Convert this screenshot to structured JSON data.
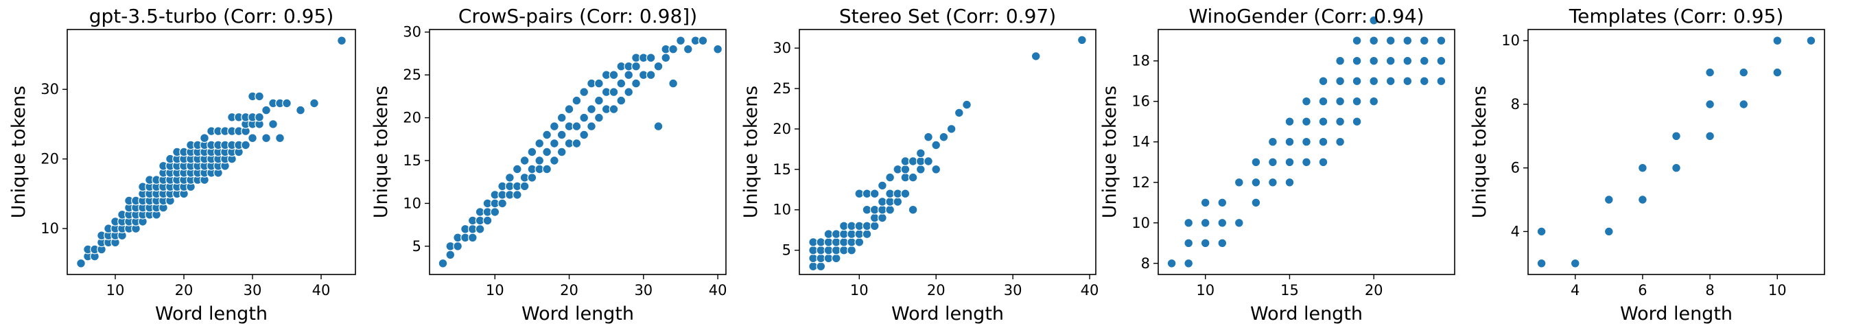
{
  "chart_data": [
    {
      "type": "scatter",
      "title": "gpt-3.5-turbo (Corr: 0.95)",
      "xlabel": "Word length",
      "ylabel": "Unique tokens",
      "xlim": [
        3.0,
        45.0
      ],
      "ylim": [
        3.4,
        38.6
      ],
      "xticks": [
        10,
        20,
        30,
        40
      ],
      "yticks": [
        10,
        20,
        30
      ],
      "color": "#1f77b4",
      "grid": false,
      "x": [
        5,
        6,
        6,
        7,
        7,
        8,
        8,
        8,
        9,
        9,
        9,
        10,
        10,
        10,
        10,
        11,
        11,
        11,
        11,
        12,
        12,
        12,
        12,
        12,
        13,
        13,
        13,
        13,
        13,
        14,
        14,
        14,
        14,
        14,
        14,
        15,
        15,
        15,
        15,
        15,
        15,
        16,
        16,
        16,
        16,
        16,
        16,
        17,
        17,
        17,
        17,
        17,
        17,
        17,
        18,
        18,
        18,
        18,
        18,
        18,
        18,
        19,
        19,
        19,
        19,
        19,
        19,
        19,
        20,
        20,
        20,
        20,
        20,
        20,
        20,
        21,
        21,
        21,
        21,
        21,
        21,
        21,
        22,
        22,
        22,
        22,
        22,
        22,
        23,
        23,
        23,
        23,
        23,
        23,
        23,
        24,
        24,
        24,
        24,
        24,
        24,
        25,
        25,
        25,
        25,
        25,
        25,
        26,
        26,
        26,
        26,
        26,
        27,
        27,
        27,
        27,
        27,
        28,
        28,
        28,
        28,
        29,
        29,
        29,
        29,
        30,
        30,
        30,
        30,
        31,
        31,
        31,
        32,
        32,
        33,
        33,
        34,
        34,
        35,
        37,
        39,
        43
      ],
      "y": [
        5,
        6,
        7,
        6,
        7,
        7,
        8,
        9,
        8,
        9,
        10,
        8,
        9,
        10,
        11,
        9,
        10,
        11,
        12,
        10,
        11,
        12,
        13,
        14,
        10,
        11,
        12,
        13,
        14,
        11,
        12,
        13,
        14,
        15,
        16,
        12,
        13,
        14,
        15,
        16,
        17,
        12,
        13,
        14,
        15,
        16,
        17,
        13,
        14,
        15,
        16,
        17,
        18,
        19,
        14,
        15,
        16,
        17,
        18,
        19,
        20,
        15,
        16,
        17,
        18,
        19,
        20,
        21,
        15,
        16,
        17,
        18,
        19,
        20,
        21,
        16,
        17,
        18,
        19,
        20,
        21,
        22,
        17,
        18,
        19,
        20,
        21,
        22,
        17,
        18,
        19,
        20,
        21,
        22,
        23,
        18,
        19,
        20,
        21,
        22,
        24,
        18,
        19,
        20,
        21,
        22,
        24,
        19,
        20,
        21,
        22,
        24,
        20,
        21,
        22,
        24,
        26,
        21,
        22,
        24,
        26,
        22,
        24,
        25,
        26,
        23,
        25,
        26,
        29,
        25,
        26,
        29,
        23,
        27,
        25,
        28,
        23,
        28,
        28,
        27,
        28,
        37
      ]
    },
    {
      "type": "scatter",
      "title": "CrowS-pairs (Corr: 0.98])",
      "xlabel": "Word length",
      "ylabel": "",
      "xlim": [
        1.2,
        41.1
      ],
      "ylim": [
        1.7,
        30.3
      ],
      "xticks": [
        10,
        20,
        30,
        40
      ],
      "yticks": [
        5,
        10,
        15,
        20,
        25,
        30
      ],
      "color": "#1f77b4",
      "grid": false,
      "x": [
        3,
        4,
        4,
        5,
        5,
        6,
        6,
        7,
        7,
        7,
        8,
        8,
        8,
        9,
        9,
        9,
        10,
        10,
        10,
        11,
        11,
        11,
        12,
        12,
        12,
        13,
        13,
        13,
        14,
        14,
        14,
        15,
        15,
        15,
        16,
        16,
        16,
        17,
        17,
        17,
        18,
        18,
        18,
        19,
        19,
        19,
        20,
        20,
        20,
        21,
        21,
        21,
        22,
        22,
        22,
        23,
        23,
        23,
        24,
        24,
        24,
        25,
        25,
        25,
        26,
        26,
        26,
        27,
        27,
        27,
        28,
        28,
        28,
        29,
        29,
        29,
        30,
        30,
        31,
        31,
        32,
        32,
        33,
        33,
        34,
        34,
        35,
        36,
        37,
        38,
        40
      ],
      "y": [
        3,
        4,
        5,
        5,
        6,
        6,
        7,
        6,
        7,
        8,
        7,
        8,
        9,
        8,
        9,
        10,
        9,
        10,
        11,
        10,
        11,
        12,
        11,
        12,
        13,
        11,
        12,
        14,
        12,
        13,
        15,
        13,
        14,
        16,
        14,
        15,
        17,
        14,
        16,
        18,
        15,
        17,
        19,
        16,
        18,
        20,
        17,
        19,
        21,
        17,
        19,
        22,
        18,
        20,
        23,
        19,
        21,
        24,
        20,
        22,
        24,
        21,
        23,
        25,
        21,
        23,
        25,
        22,
        24,
        26,
        23,
        25,
        26,
        24,
        26,
        27,
        25,
        27,
        25,
        27,
        19,
        26,
        27,
        28,
        24,
        28,
        29,
        28,
        29,
        29,
        28
      ]
    },
    {
      "type": "scatter",
      "title": "Stereo Set (Corr: 0.97)",
      "xlabel": "Word length",
      "ylabel": "",
      "xlim": [
        2.2,
        40.8
      ],
      "ylim": [
        2.0,
        32.3
      ],
      "xticks": [
        10,
        20,
        30,
        40
      ],
      "yticks": [
        5,
        10,
        15,
        20,
        25,
        30
      ],
      "color": "#1f77b4",
      "grid": false,
      "x": [
        4,
        4,
        4,
        4,
        5,
        5,
        5,
        5,
        6,
        6,
        6,
        6,
        7,
        7,
        7,
        7,
        8,
        8,
        8,
        8,
        9,
        9,
        9,
        9,
        10,
        10,
        10,
        10,
        11,
        11,
        11,
        11,
        12,
        12,
        12,
        12,
        13,
        13,
        13,
        13,
        14,
        14,
        14,
        14,
        15,
        15,
        15,
        16,
        16,
        16,
        16,
        17,
        17,
        17,
        18,
        18,
        18,
        19,
        19,
        20,
        20,
        21,
        22,
        23,
        24,
        33,
        39
      ],
      "y": [
        3,
        4,
        5,
        6,
        3,
        4,
        5,
        6,
        4,
        5,
        6,
        7,
        4,
        5,
        6,
        7,
        5,
        6,
        7,
        8,
        5,
        6,
        7,
        8,
        6,
        7,
        8,
        12,
        7,
        8,
        10,
        12,
        8,
        9,
        10,
        12,
        9,
        10,
        11,
        13,
        10,
        11,
        12,
        14,
        11,
        12,
        15,
        12,
        14,
        15,
        16,
        10,
        14,
        16,
        15,
        16,
        17,
        16,
        19,
        15,
        18,
        19,
        20,
        22,
        23,
        29,
        31
      ]
    },
    {
      "type": "scatter",
      "title": "WinoGender (Corr: 0.94)",
      "xlabel": "Word length",
      "ylabel": "",
      "xlim": [
        7.2,
        24.8
      ],
      "ylim": [
        7.45,
        19.55
      ],
      "xticks": [
        10,
        15,
        20
      ],
      "yticks": [
        8,
        10,
        12,
        14,
        16,
        18
      ],
      "color": "#1f77b4",
      "grid": false,
      "x": [
        8,
        9,
        9,
        9,
        9,
        10,
        10,
        10,
        11,
        11,
        11,
        12,
        12,
        13,
        13,
        13,
        14,
        14,
        14,
        15,
        15,
        15,
        15,
        16,
        16,
        16,
        16,
        17,
        17,
        17,
        17,
        17,
        18,
        18,
        18,
        18,
        18,
        19,
        19,
        19,
        19,
        19,
        20,
        20,
        20,
        20,
        20,
        21,
        21,
        21,
        22,
        22,
        22,
        23,
        23,
        23,
        24,
        24,
        24
      ],
      "y": [
        8,
        8,
        9,
        10,
        9,
        9,
        10,
        11,
        9,
        10,
        11,
        10,
        12,
        11,
        12,
        13,
        12,
        13,
        14,
        12,
        13,
        14,
        15,
        13,
        14,
        15,
        16,
        13,
        14,
        15,
        16,
        17,
        14,
        15,
        16,
        17,
        18,
        15,
        16,
        17,
        18,
        19,
        16,
        17,
        18,
        19,
        20,
        17,
        18,
        19,
        17,
        18,
        19,
        17,
        18,
        19,
        17,
        18,
        19
      ]
    },
    {
      "type": "scatter",
      "title": "Templates (Corr: 0.95)",
      "xlabel": "Word length",
      "ylabel": "",
      "xlim": [
        2.6,
        11.4
      ],
      "ylim": [
        2.65,
        10.35
      ],
      "xticks": [
        4,
        6,
        8,
        10
      ],
      "yticks": [
        4,
        6,
        8,
        10
      ],
      "color": "#1f77b4",
      "grid": false,
      "x": [
        3,
        3,
        4,
        5,
        5,
        6,
        6,
        7,
        7,
        8,
        8,
        8,
        9,
        9,
        10,
        10,
        11
      ],
      "y": [
        3,
        4,
        3,
        4,
        5,
        5,
        6,
        6,
        7,
        7,
        8,
        9,
        8,
        9,
        9,
        10,
        10
      ]
    }
  ],
  "shared_ylabel": "Unique tokens"
}
